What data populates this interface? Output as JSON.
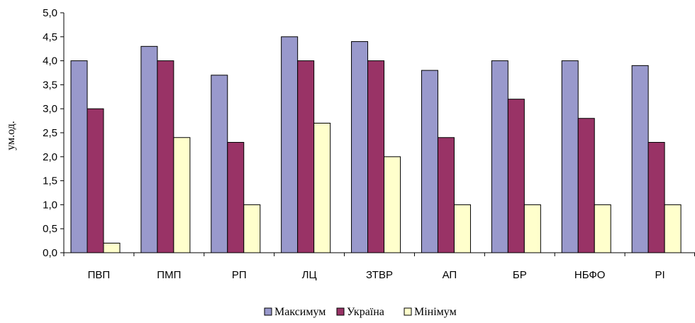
{
  "chart_data": {
    "type": "bar",
    "categories": [
      "ПВП",
      "ПМП",
      "РП",
      "ЛЦ",
      "ЗТВР",
      "АП",
      "БР",
      "НБФО",
      "РІ"
    ],
    "series": [
      {
        "name": "Максимум",
        "color": "#9999cc",
        "values": [
          4.0,
          4.3,
          3.7,
          4.5,
          4.4,
          3.8,
          4.0,
          4.0,
          3.9
        ]
      },
      {
        "name": "Україна",
        "color": "#993366",
        "values": [
          3.0,
          4.0,
          2.3,
          4.0,
          4.0,
          2.4,
          3.2,
          2.8,
          2.3
        ]
      },
      {
        "name": "Мінімум",
        "color": "#ffffcc",
        "values": [
          0.2,
          2.4,
          1.0,
          2.7,
          2.0,
          1.0,
          1.0,
          1.0,
          1.0
        ]
      }
    ],
    "ylabel": "ум.од.",
    "ylim": [
      0,
      5.0
    ],
    "yticks": [
      "0,0",
      "0,5",
      "1,0",
      "1,5",
      "2,0",
      "2,5",
      "3,0",
      "3,5",
      "4,0",
      "4,5",
      "5,0"
    ],
    "grid": false,
    "legend_position": "bottom"
  }
}
